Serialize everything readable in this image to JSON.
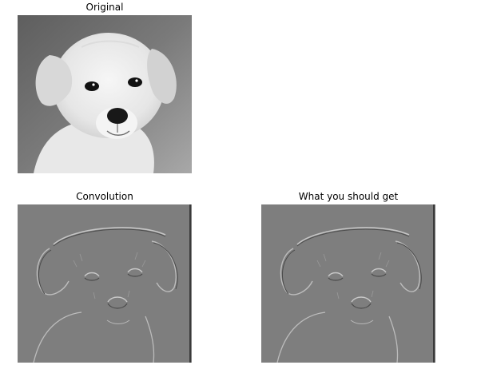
{
  "figure": {
    "panels": [
      {
        "title": "Original",
        "kind": "grayscale-photo",
        "subject": "puppy"
      },
      {
        "title": "Convolution",
        "kind": "edge-filtered-photo",
        "subject": "puppy"
      },
      {
        "title": "What you should get",
        "kind": "edge-filtered-photo",
        "subject": "puppy"
      }
    ]
  },
  "colors": {
    "original_bg_dark": "#6a6a6a",
    "original_bg_light": "#9a9a9a",
    "dog_fur": "#f2f2f2",
    "dog_ear": "#d6d6d6",
    "dog_eye": "#111111",
    "dog_nose": "#1a1a1a",
    "filtered_bg": "#7e7e7e",
    "filtered_light": "#c4c4c4",
    "filtered_dark": "#4a4a4a"
  }
}
